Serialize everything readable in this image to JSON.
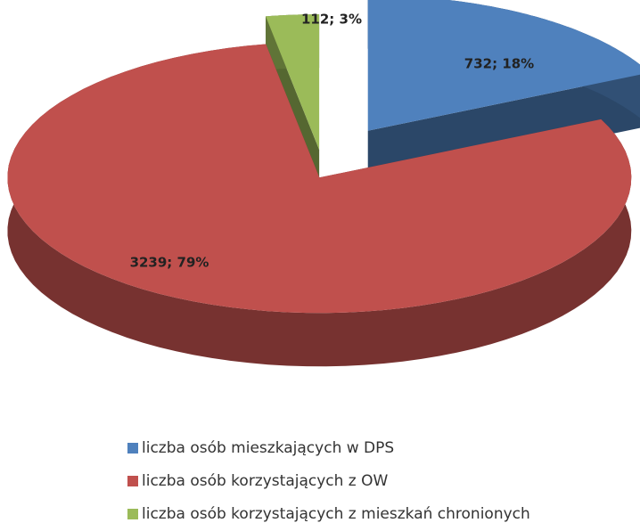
{
  "chart_data": {
    "type": "pie",
    "categories": [
      "liczba osób mieszkających w DPS",
      "liczba osób korzystających z OW",
      "liczba osób korzystających z mieszkań chronionych"
    ],
    "values": [
      732,
      3239,
      112
    ],
    "value_labels": [
      "732; 18%",
      "3239; 79%",
      "112; 3%"
    ],
    "colors": [
      "#4f81bd",
      "#c0504d",
      "#9bbb59"
    ],
    "legend": "bottom"
  }
}
